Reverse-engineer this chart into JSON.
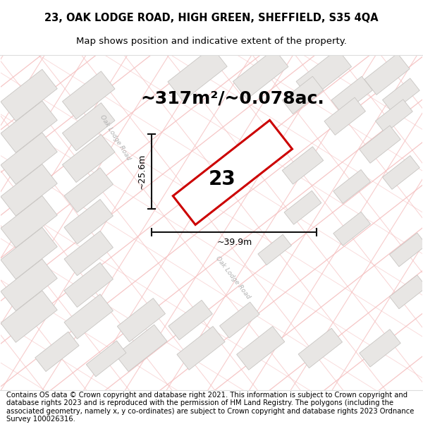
{
  "title_line1": "23, OAK LODGE ROAD, HIGH GREEN, SHEFFIELD, S35 4QA",
  "title_line2": "Map shows position and indicative extent of the property.",
  "area_text": "~317m²/~0.078ac.",
  "dim_width": "~39.9m",
  "dim_height": "~25.6m",
  "property_number": "23",
  "footer_text": "Contains OS data © Crown copyright and database right 2021. This information is subject to Crown copyright and database rights 2023 and is reproduced with the permission of HM Land Registry. The polygons (including the associated geometry, namely x, y co-ordinates) are subject to Crown copyright and database rights 2023 Ordnance Survey 100026316.",
  "map_bg": "#ffffff",
  "road_pink": "#f5c0c0",
  "road_pink2": "#f0a8a8",
  "block_face": "#e8e6e4",
  "block_edge": "#c8c5c2",
  "prop_edge": "#cc0000",
  "prop_face": "#ffffff",
  "dim_color": "#111111",
  "road_label_color": "#b0b0b0",
  "title_fs": 10.5,
  "sub_fs": 9.5,
  "area_fs": 18,
  "footer_fs": 7.2,
  "prop_num_fs": 20
}
